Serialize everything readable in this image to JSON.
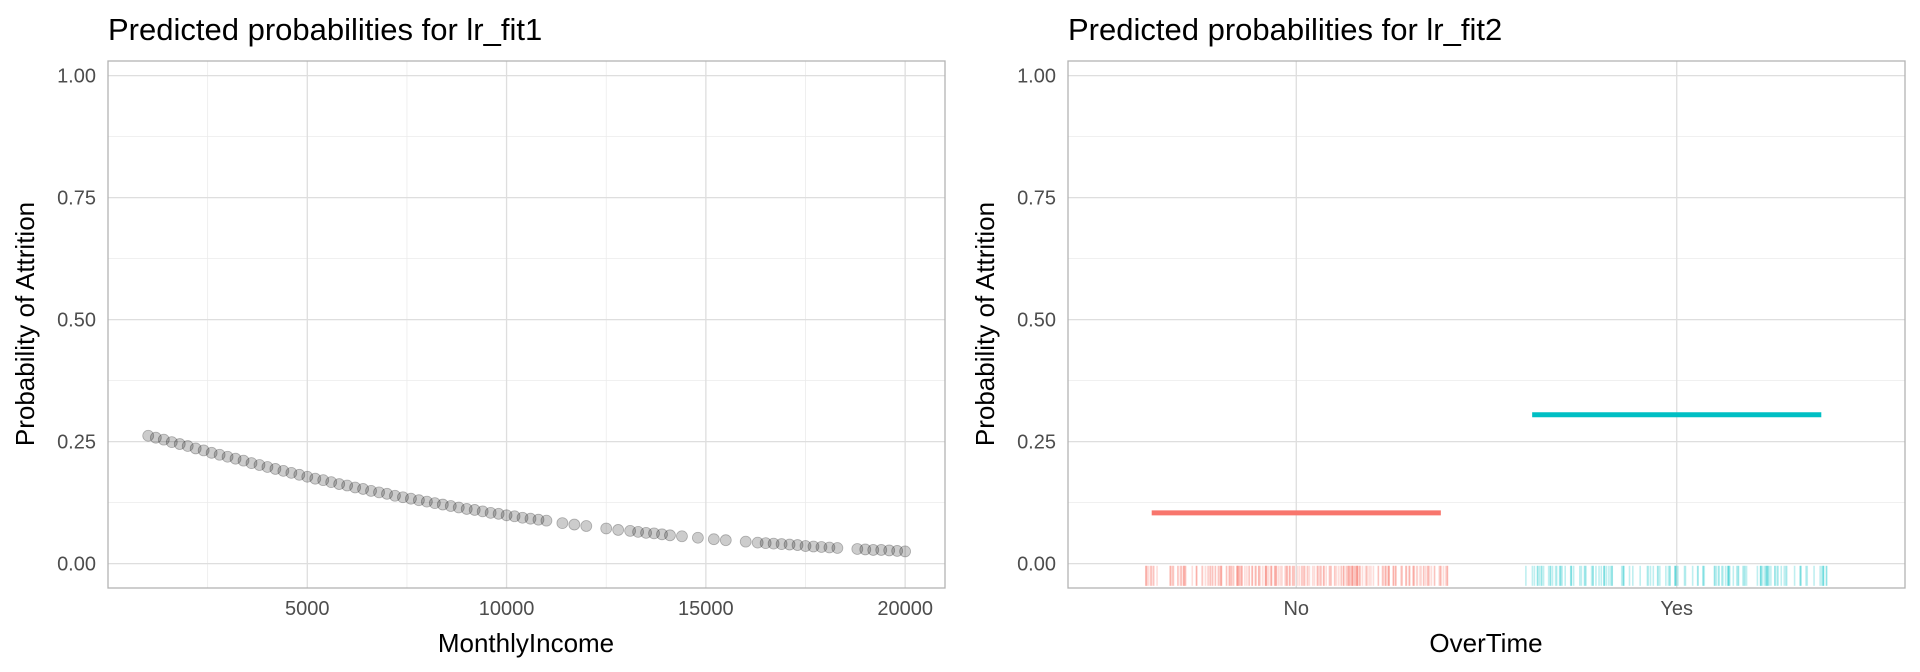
{
  "chart_data": [
    {
      "type": "scatter",
      "title": "Predicted probabilities for lr_fit1",
      "xlabel": "MonthlyIncome",
      "ylabel": "Probability of Attrition",
      "xlim": [
        0,
        21000
      ],
      "ylim": [
        -0.05,
        1.03
      ],
      "xticks": [
        5000,
        10000,
        15000,
        20000
      ],
      "xtick_labels": [
        "5000",
        "10000",
        "15000",
        "20000"
      ],
      "yticks": [
        0,
        0.25,
        0.5,
        0.75,
        1.0
      ],
      "ytick_labels": [
        "0.00",
        "0.25",
        "0.50",
        "0.75",
        "1.00"
      ],
      "grid": true,
      "point_color": "#000000",
      "point_opacity": 0.2,
      "x": [
        1009,
        1200,
        1400,
        1600,
        1800,
        2000,
        2200,
        2400,
        2600,
        2800,
        3000,
        3200,
        3400,
        3600,
        3800,
        4000,
        4200,
        4400,
        4600,
        4800,
        5000,
        5200,
        5400,
        5600,
        5800,
        6000,
        6200,
        6400,
        6600,
        6800,
        7000,
        7200,
        7400,
        7600,
        7800,
        8000,
        8200,
        8400,
        8600,
        8800,
        9000,
        9200,
        9400,
        9600,
        9800,
        10000,
        10200,
        10400,
        10600,
        10800,
        11000,
        11400,
        11700,
        12000,
        12500,
        12800,
        13100,
        13300,
        13500,
        13700,
        13900,
        14100,
        14400,
        14800,
        15200,
        15500,
        16000,
        16300,
        16500,
        16700,
        16900,
        17100,
        17300,
        17500,
        17700,
        17900,
        18100,
        18300,
        18800,
        19000,
        19200,
        19400,
        19600,
        19800,
        19999
      ],
      "y": [
        0.262,
        0.258,
        0.254,
        0.249,
        0.245,
        0.241,
        0.236,
        0.232,
        0.227,
        0.223,
        0.219,
        0.215,
        0.211,
        0.206,
        0.202,
        0.198,
        0.194,
        0.19,
        0.186,
        0.182,
        0.178,
        0.174,
        0.171,
        0.167,
        0.163,
        0.16,
        0.156,
        0.153,
        0.149,
        0.146,
        0.143,
        0.139,
        0.136,
        0.133,
        0.13,
        0.127,
        0.124,
        0.121,
        0.118,
        0.115,
        0.112,
        0.11,
        0.107,
        0.104,
        0.102,
        0.099,
        0.097,
        0.094,
        0.092,
        0.09,
        0.088,
        0.083,
        0.08,
        0.077,
        0.072,
        0.069,
        0.067,
        0.065,
        0.063,
        0.062,
        0.06,
        0.058,
        0.056,
        0.053,
        0.05,
        0.048,
        0.045,
        0.043,
        0.042,
        0.041,
        0.04,
        0.039,
        0.038,
        0.036,
        0.035,
        0.034,
        0.033,
        0.032,
        0.03,
        0.029,
        0.028,
        0.028,
        0.027,
        0.026,
        0.025
      ]
    },
    {
      "type": "line",
      "title": "Predicted probabilities for lr_fit2",
      "xlabel": "OverTime",
      "ylabel": "Probability of Attrition",
      "categories": [
        "No",
        "Yes"
      ],
      "ylim": [
        -0.05,
        1.03
      ],
      "yticks": [
        0,
        0.25,
        0.5,
        0.75,
        1.0
      ],
      "ytick_labels": [
        "0.00",
        "0.25",
        "0.50",
        "0.75",
        "1.00"
      ],
      "grid": true,
      "series": [
        {
          "category": "No",
          "value": 0.104,
          "color": "#F8766D"
        },
        {
          "category": "Yes",
          "value": 0.305,
          "color": "#00BFC4"
        }
      ],
      "rug_y": -0.025
    }
  ]
}
